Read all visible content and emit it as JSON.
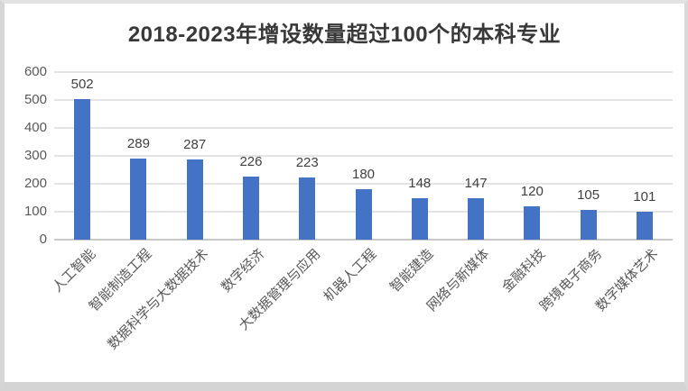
{
  "chart_data": {
    "type": "bar",
    "title": "2018-2023年增设数量超过100个的本科专业",
    "categories": [
      "人工智能",
      "智能制造工程",
      "数据科学与大数据技术",
      "数字经济",
      "大数据管理与应用",
      "机器人工程",
      "智能建造",
      "网络与新媒体",
      "金融科技",
      "跨境电子商务",
      "数字媒体艺术"
    ],
    "values": [
      502,
      289,
      287,
      226,
      223,
      180,
      148,
      147,
      120,
      105,
      101
    ],
    "xlabel": "",
    "ylabel": "",
    "ylim": [
      0,
      600
    ],
    "ytick_step": 100,
    "ytick_labels": [
      "0",
      "100",
      "200",
      "300",
      "400",
      "500",
      "600"
    ],
    "grid": "horizontal",
    "legend": "none",
    "bar_color": "#4472c4",
    "category_label_rotation_deg": -45
  }
}
